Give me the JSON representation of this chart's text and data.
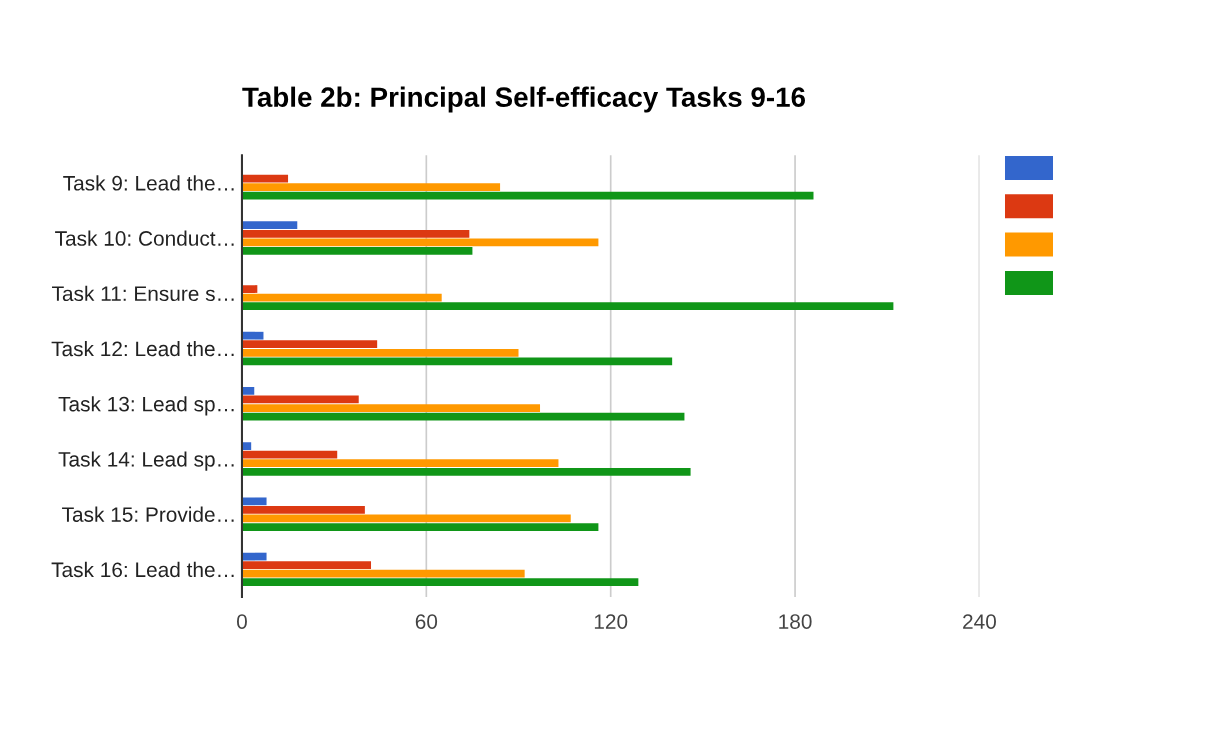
{
  "chart_data": {
    "type": "bar",
    "orientation": "horizontal",
    "title": "Table 2b: Principal Self-efficacy Tasks 9-16",
    "categories": [
      "Task 9: Lead the…",
      "Task 10: Conduct…",
      "Task 11: Ensure s…",
      "Task 12: Lead the…",
      "Task 13: Lead sp…",
      "Task 14: Lead sp…",
      "Task 15: Provide…",
      "Task 16: Lead the…"
    ],
    "series": [
      {
        "color": "#3366cc",
        "values": [
          0,
          18,
          0,
          7,
          4,
          3,
          8,
          8
        ]
      },
      {
        "color": "#dc3912",
        "values": [
          15,
          74,
          5,
          44,
          38,
          31,
          40,
          42
        ]
      },
      {
        "color": "#ff9900",
        "values": [
          84,
          116,
          65,
          90,
          97,
          103,
          107,
          92
        ]
      },
      {
        "color": "#109618",
        "values": [
          186,
          75,
          212,
          140,
          144,
          146,
          116,
          129
        ]
      }
    ],
    "xlim": [
      0,
      240
    ],
    "xticks": [
      0,
      60,
      120,
      180,
      240
    ],
    "grid": "x"
  }
}
